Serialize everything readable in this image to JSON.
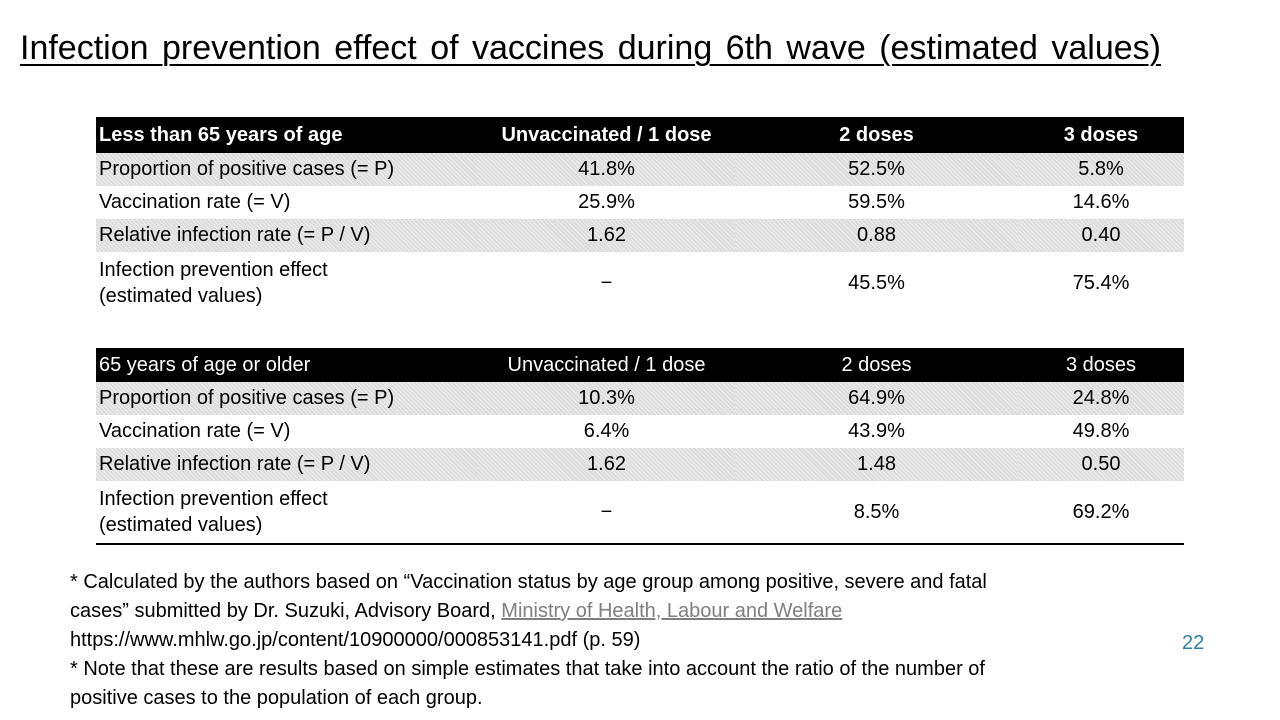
{
  "slide": {
    "title": "Infection prevention effect of vaccines during 6th wave (estimated values)",
    "page_number": "22"
  },
  "tables": [
    {
      "header": [
        "Less than 65 years of age",
        "Unvaccinated / 1 dose",
        "2 doses",
        "3 doses"
      ],
      "rows": [
        {
          "label": "Proportion of positive cases (= P)",
          "values": [
            "41.8%",
            "52.5%",
            "5.8%"
          ]
        },
        {
          "label": "Vaccination rate (= V)",
          "values": [
            "25.9%",
            "59.5%",
            "14.6%"
          ]
        },
        {
          "label": "Relative infection rate (= P / V)",
          "values": [
            "1.62",
            "0.88",
            "0.40"
          ]
        },
        {
          "label_lines": [
            "Infection prevention effect",
            "(estimated values)"
          ],
          "values": [
            "−",
            "45.5%",
            "75.4%"
          ]
        }
      ]
    },
    {
      "header": [
        "65 years of age or older",
        "Unvaccinated / 1 dose",
        "2 doses",
        "3 doses"
      ],
      "rows": [
        {
          "label": "Proportion of positive cases (= P)",
          "values": [
            "10.3%",
            "64.9%",
            "24.8%"
          ]
        },
        {
          "label": "Vaccination rate (= V)",
          "values": [
            "6.4%",
            "43.9%",
            "49.8%"
          ]
        },
        {
          "label": "Relative infection rate (= P / V)",
          "values": [
            "1.62",
            "1.48",
            "0.50"
          ]
        },
        {
          "label_lines": [
            "Infection prevention effect",
            "(estimated values)"
          ],
          "values": [
            "−",
            "8.5%",
            "69.2%"
          ]
        }
      ]
    }
  ],
  "notes": {
    "line1": "* Calculated by the authors based on “Vaccination status by age group among positive, severe and fatal",
    "line2_prefix": "cases” submitted by Dr. Suzuki, Advisory Board,",
    "link_text": "Ministry of Health, Labour and Welfare",
    "line3": "https://www.mhlw.go.jp/content/10900000/000853141.pdf (p. 59)",
    "line4": "* Note that these are results based on simple estimates that take into account the ratio of the number of",
    "line5": "positive cases to the population of each group."
  },
  "colors": {
    "header_bg": "#000000",
    "band_bg": "#dcdcdc",
    "link": "#7f7f7f",
    "page_number": "#2e7dab"
  }
}
